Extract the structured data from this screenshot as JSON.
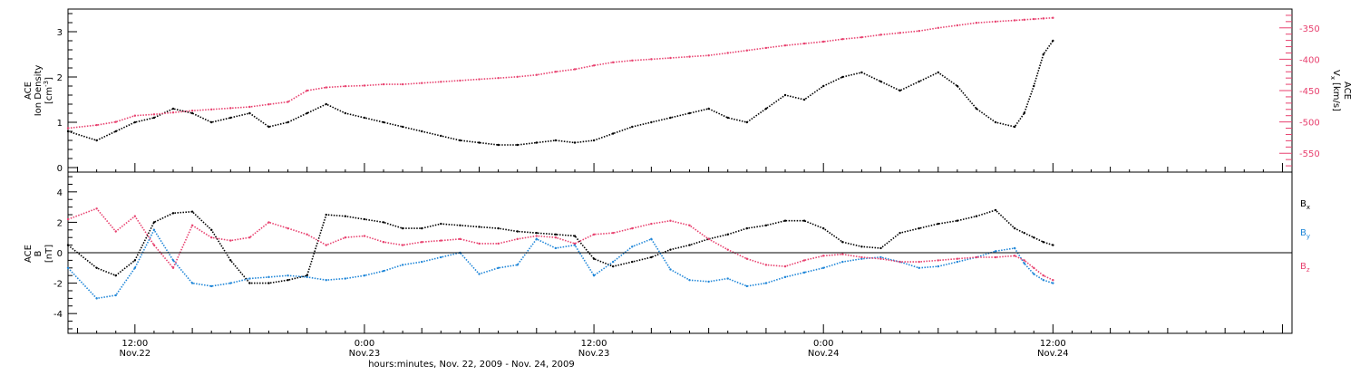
{
  "colors": {
    "axis": "#000000",
    "black": "#000000",
    "pink": "#e8416f",
    "blue": "#1f86d8"
  },
  "chart_data": [
    {
      "type": "scatter",
      "panel": "top",
      "xlabel": "hours:minutes, Nov. 22, 2009 - Nov. 24, 2009",
      "xlim": [
        -3.5,
        60.5
      ],
      "x_ticks": [
        {
          "x": 0,
          "time": "12:00",
          "date": "Nov.22"
        },
        {
          "x": 12,
          "time": "0:00",
          "date": "Nov.23"
        },
        {
          "x": 24,
          "time": "12:00",
          "date": "Nov.23"
        },
        {
          "x": 36,
          "time": "0:00",
          "date": "Nov.24"
        },
        {
          "x": 48,
          "time": "12:00",
          "date": "Nov.24"
        }
      ],
      "left_axis": {
        "label_line1": "ACE",
        "label_line2": "Ion Density",
        "unit": "[cm",
        "unit_sup": "-3",
        "unit_end": "]",
        "ylim": [
          -0.1,
          3.5
        ],
        "ticks": [
          "0",
          "1",
          "2",
          "3"
        ]
      },
      "right_axis": {
        "label_line1": "ACE",
        "label_main": "V",
        "label_sub": "x",
        "unit": "[km/s]",
        "ylim": [
          -580,
          -320
        ],
        "ticks": [
          "-350",
          "-400",
          "-450",
          "-500",
          "-550"
        ]
      },
      "series": [
        {
          "color": "#000000",
          "axis": "left",
          "x": [
            -3.5,
            -2,
            -1,
            0,
            1,
            2,
            3,
            4,
            5,
            6,
            7,
            8,
            9,
            10,
            11,
            12,
            13,
            14,
            15,
            16,
            17,
            18,
            19,
            20,
            21,
            22,
            23,
            24,
            25,
            26,
            27,
            28,
            29,
            30,
            31,
            32,
            33,
            34,
            35,
            36,
            37,
            38,
            39,
            40,
            41,
            42,
            43,
            44,
            45,
            46,
            46.5,
            47,
            47.5,
            48
          ],
          "y": [
            0.8,
            0.6,
            0.8,
            1.0,
            1.1,
            1.3,
            1.2,
            1.0,
            1.1,
            1.2,
            0.9,
            1.0,
            1.2,
            1.4,
            1.2,
            1.1,
            1.0,
            0.9,
            0.8,
            0.7,
            0.6,
            0.55,
            0.5,
            0.5,
            0.55,
            0.6,
            0.55,
            0.6,
            0.75,
            0.9,
            1.0,
            1.1,
            1.2,
            1.3,
            1.1,
            1.0,
            1.3,
            1.6,
            1.5,
            1.8,
            2.0,
            2.1,
            1.9,
            1.7,
            1.9,
            2.1,
            1.8,
            1.3,
            1.0,
            0.9,
            1.2,
            1.8,
            2.5,
            2.8
          ]
        },
        {
          "color": "#e8416f",
          "axis": "right",
          "x": [
            -3.5,
            -2,
            -1,
            0,
            1,
            2,
            3,
            4,
            5,
            6,
            7,
            8,
            9,
            10,
            11,
            12,
            13,
            14,
            15,
            16,
            17,
            18,
            19,
            20,
            21,
            22,
            23,
            24,
            25,
            26,
            27,
            28,
            29,
            30,
            31,
            32,
            33,
            34,
            35,
            36,
            37,
            38,
            39,
            40,
            41,
            42,
            43,
            44,
            45,
            46,
            46.5,
            47,
            47.5,
            48
          ],
          "y": [
            -510,
            -505,
            -500,
            -490,
            -488,
            -485,
            -482,
            -480,
            -478,
            -476,
            -472,
            -468,
            -450,
            -445,
            -443,
            -442,
            -440,
            -440,
            -438,
            -436,
            -434,
            -432,
            -430,
            -428,
            -425,
            -420,
            -416,
            -410,
            -405,
            -402,
            -400,
            -398,
            -396,
            -394,
            -390,
            -386,
            -382,
            -378,
            -375,
            -372,
            -368,
            -365,
            -361,
            -358,
            -355,
            -350,
            -346,
            -342,
            -340,
            -338,
            -337,
            -336,
            -335,
            -334
          ]
        }
      ]
    },
    {
      "type": "scatter",
      "panel": "bottom",
      "xlim": [
        -3.5,
        60.5
      ],
      "left_axis": {
        "label_line1": "ACE",
        "label_main": "B",
        "unit": "[nT]",
        "ylim": [
          -5.3,
          5.3
        ],
        "ticks": [
          "4",
          "2",
          "0",
          "-2",
          "-4"
        ]
      },
      "legend_position": "right",
      "reference_line_y": 0,
      "series": [
        {
          "name": "B",
          "sub": "x",
          "color": "#000000",
          "x": [
            -3.5,
            -2,
            -1,
            0,
            1,
            2,
            3,
            4,
            5,
            6,
            7,
            8,
            9,
            10,
            11,
            12,
            13,
            14,
            15,
            16,
            17,
            18,
            19,
            20,
            21,
            22,
            23,
            24,
            25,
            26,
            27,
            28,
            29,
            30,
            31,
            32,
            33,
            34,
            35,
            36,
            37,
            38,
            39,
            40,
            41,
            42,
            43,
            44,
            45,
            46,
            46.5,
            47,
            47.5,
            48
          ],
          "y": [
            0.5,
            -1.0,
            -1.5,
            -0.5,
            2.0,
            2.6,
            2.7,
            1.5,
            -0.5,
            -2.0,
            -2.0,
            -1.8,
            -1.5,
            2.5,
            2.4,
            2.2,
            2.0,
            1.6,
            1.6,
            1.9,
            1.8,
            1.7,
            1.6,
            1.4,
            1.3,
            1.2,
            1.1,
            -0.4,
            -0.9,
            -0.6,
            -0.3,
            0.2,
            0.5,
            0.9,
            1.2,
            1.6,
            1.8,
            2.1,
            2.1,
            1.6,
            0.7,
            0.4,
            0.3,
            1.3,
            1.6,
            1.9,
            2.1,
            2.4,
            2.8,
            1.6,
            1.3,
            1.0,
            0.7,
            0.5
          ]
        },
        {
          "name": "B",
          "sub": "y",
          "color": "#1f86d8",
          "x": [
            -3.5,
            -2,
            -1,
            0,
            1,
            2,
            3,
            4,
            5,
            6,
            7,
            8,
            9,
            10,
            11,
            12,
            13,
            14,
            15,
            16,
            17,
            18,
            19,
            20,
            21,
            22,
            23,
            24,
            25,
            26,
            27,
            28,
            29,
            30,
            31,
            32,
            33,
            34,
            35,
            36,
            37,
            38,
            39,
            40,
            41,
            42,
            43,
            44,
            45,
            46,
            46.5,
            47,
            47.5,
            48
          ],
          "y": [
            -1.0,
            -3.0,
            -2.8,
            -1.0,
            1.5,
            -0.5,
            -2.0,
            -2.2,
            -2.0,
            -1.7,
            -1.6,
            -1.5,
            -1.6,
            -1.8,
            -1.7,
            -1.5,
            -1.2,
            -0.8,
            -0.6,
            -0.3,
            0.0,
            -1.4,
            -1.0,
            -0.8,
            0.9,
            0.3,
            0.5,
            -1.5,
            -0.6,
            0.4,
            0.9,
            -1.1,
            -1.8,
            -1.9,
            -1.7,
            -2.2,
            -2.0,
            -1.6,
            -1.3,
            -1.0,
            -0.6,
            -0.4,
            -0.3,
            -0.6,
            -1.0,
            -0.9,
            -0.6,
            -0.3,
            0.1,
            0.3,
            -0.7,
            -1.4,
            -1.8,
            -2.0
          ]
        },
        {
          "name": "B",
          "sub": "z",
          "color": "#e8416f",
          "x": [
            -3.5,
            -2,
            -1,
            0,
            1,
            2,
            3,
            4,
            5,
            6,
            7,
            8,
            9,
            10,
            11,
            12,
            13,
            14,
            15,
            16,
            17,
            18,
            19,
            20,
            21,
            22,
            23,
            24,
            25,
            26,
            27,
            28,
            29,
            30,
            31,
            32,
            33,
            34,
            35,
            36,
            37,
            38,
            39,
            40,
            41,
            42,
            43,
            44,
            45,
            46,
            46.5,
            47,
            47.5,
            48
          ],
          "y": [
            2.2,
            2.9,
            1.4,
            2.4,
            0.5,
            -1.0,
            1.8,
            1.0,
            0.8,
            1.0,
            2.0,
            1.6,
            1.2,
            0.5,
            1.0,
            1.1,
            0.7,
            0.5,
            0.7,
            0.8,
            0.9,
            0.6,
            0.6,
            0.9,
            1.1,
            1.0,
            0.6,
            1.2,
            1.3,
            1.6,
            1.9,
            2.1,
            1.8,
            0.9,
            0.2,
            -0.4,
            -0.8,
            -0.9,
            -0.5,
            -0.2,
            -0.1,
            -0.3,
            -0.4,
            -0.6,
            -0.6,
            -0.5,
            -0.4,
            -0.3,
            -0.3,
            -0.2,
            -0.5,
            -1.0,
            -1.5,
            -1.8
          ]
        }
      ]
    }
  ]
}
